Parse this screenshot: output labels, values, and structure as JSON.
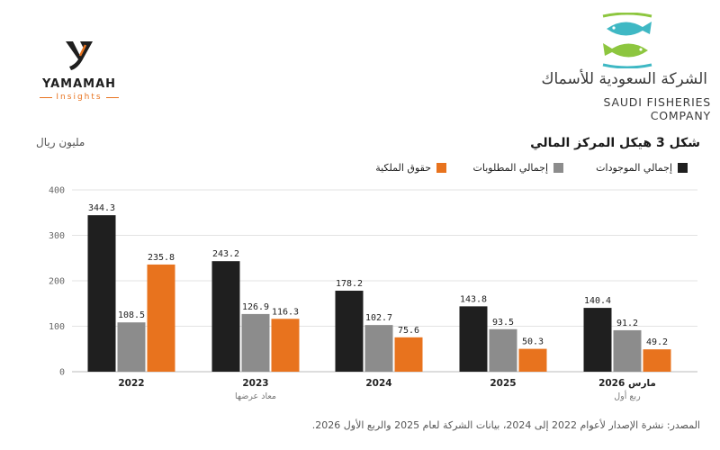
{
  "yamamah_logo": {
    "name": "YAMAMAH",
    "tagline": "Insights",
    "accent": "#e87420"
  },
  "fisheries_logo": {
    "name_ar": "الشركة السعودية للأسماك",
    "name_en": "SAUDI FISHERIES COMPANY",
    "colors": {
      "teal": "#3fb8c4",
      "green": "#8dc63f"
    }
  },
  "unit_label": "مليون ريال",
  "chart_title": "شكل 3  هيكل المركز المالي",
  "source_note": "المصدر: نشرة الإصدار لأعوام 2022 إلى 2024، بيانات الشركة لعام 2025 والربع الأول 2026.",
  "chart_data": {
    "type": "bar",
    "categories": [
      "2022",
      "2023",
      "2024",
      "2025",
      "مارس 2026"
    ],
    "category_notes": [
      "",
      "معاد عرضها",
      "",
      "",
      "ربع أول"
    ],
    "series": [
      {
        "name": "إجمالي الموجودات",
        "color": "#1f1f1f",
        "values": [
          344.3,
          243.2,
          178.2,
          143.8,
          140.4
        ]
      },
      {
        "name": "إجمالي المطلوبات",
        "color": "#8c8c8c",
        "values": [
          108.5,
          126.9,
          102.7,
          93.5,
          91.2
        ]
      },
      {
        "name": "حقوق الملكية",
        "color": "#e8731e",
        "values": [
          235.8,
          116.3,
          75.6,
          50.3,
          49.2
        ]
      }
    ],
    "yticks": [
      0,
      100,
      200,
      300,
      400
    ],
    "ylim": [
      0,
      400
    ],
    "grid": true,
    "legend_position": "top-right",
    "title": "شكل 3  هيكل المركز المالي",
    "ylabel": "مليون ريال"
  }
}
